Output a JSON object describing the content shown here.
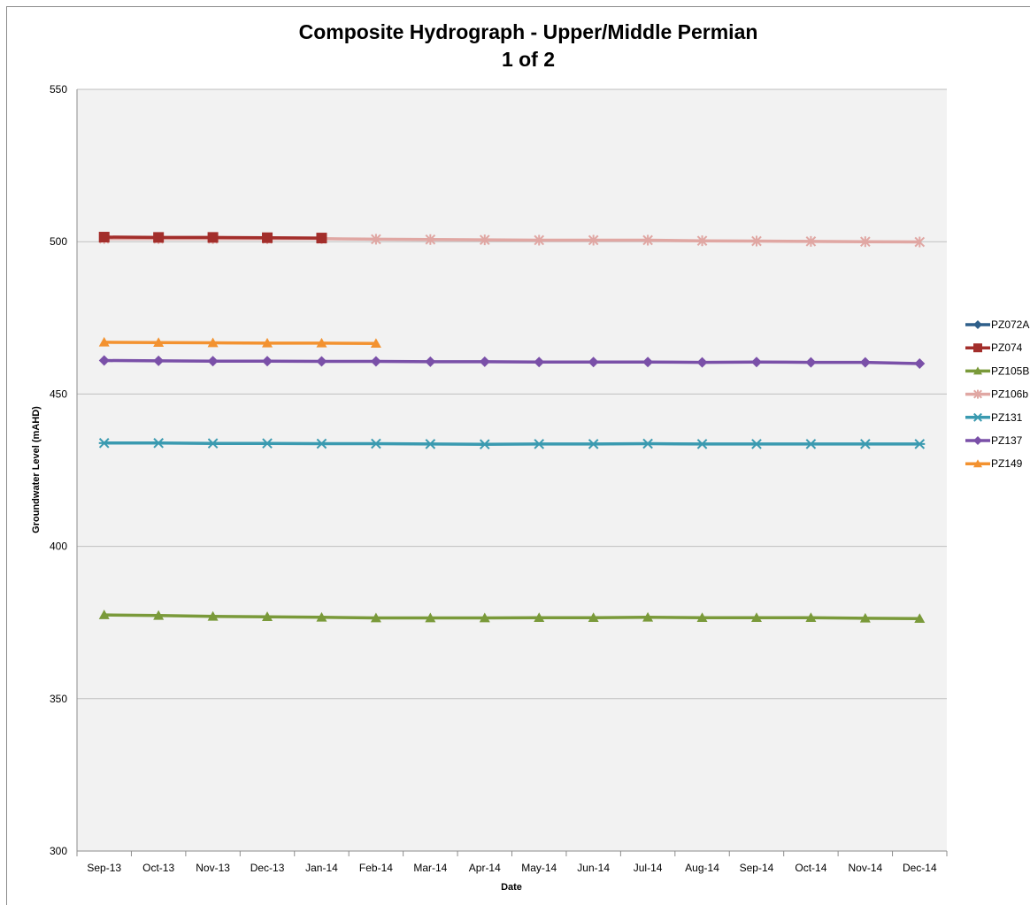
{
  "chart_data": {
    "type": "line",
    "title": "Composite Hydrograph - Upper/Middle Permian",
    "subtitle": "1 of 2",
    "xlabel": "Date",
    "ylabel": "Groundwater Level (mAHD)",
    "ylim": [
      300,
      550
    ],
    "yticks": [
      300,
      350,
      400,
      450,
      500,
      550
    ],
    "grid": "horizontal",
    "legend_position": "right",
    "categories": [
      "Sep-13",
      "Oct-13",
      "Nov-13",
      "Dec-13",
      "Jan-14",
      "Feb-14",
      "Mar-14",
      "Apr-14",
      "May-14",
      "Jun-14",
      "Jul-14",
      "Aug-14",
      "Sep-14",
      "Oct-14",
      "Nov-14",
      "Dec-14"
    ],
    "series": [
      {
        "name": "PZ072A",
        "color": "#2E5F8A",
        "marker": "diamond",
        "values": [
          null,
          null,
          null,
          null,
          null,
          null,
          null,
          null,
          null,
          null,
          null,
          null,
          null,
          null,
          null,
          null
        ]
      },
      {
        "name": "PZ074",
        "color": "#A32E2B",
        "marker": "square",
        "values": [
          501.5,
          501.4,
          501.4,
          501.3,
          501.2,
          null,
          null,
          null,
          null,
          null,
          null,
          null,
          null,
          null,
          null,
          null
        ]
      },
      {
        "name": "PZ105B",
        "color": "#7A9A3A",
        "marker": "triangle",
        "values": [
          377.5,
          377.3,
          377.0,
          376.9,
          376.7,
          376.5,
          376.5,
          376.5,
          376.6,
          376.6,
          376.7,
          376.6,
          376.6,
          376.6,
          376.4,
          376.3
        ]
      },
      {
        "name": "PZ106b",
        "color": "#E0A7A3",
        "marker": "star",
        "values": [
          501.0,
          501.0,
          501.0,
          501.0,
          501.0,
          500.8,
          500.7,
          500.6,
          500.5,
          500.5,
          500.5,
          500.3,
          500.2,
          500.1,
          500.0,
          499.9
        ]
      },
      {
        "name": "PZ131",
        "color": "#3A9AB0",
        "marker": "asterisk",
        "values": [
          433.9,
          433.9,
          433.8,
          433.8,
          433.7,
          433.7,
          433.6,
          433.5,
          433.6,
          433.6,
          433.7,
          433.6,
          433.6,
          433.6,
          433.6,
          433.6
        ]
      },
      {
        "name": "PZ137",
        "color": "#7A50A8",
        "marker": "diamond",
        "values": [
          461.0,
          460.9,
          460.8,
          460.8,
          460.7,
          460.7,
          460.6,
          460.6,
          460.5,
          460.5,
          460.5,
          460.4,
          460.5,
          460.4,
          460.4,
          460.0
        ]
      },
      {
        "name": "PZ149",
        "color": "#F39230",
        "marker": "triangle",
        "values": [
          467.0,
          466.9,
          466.8,
          466.7,
          466.7,
          466.6,
          null,
          null,
          null,
          null,
          null,
          null,
          null,
          null,
          null,
          null
        ]
      }
    ]
  }
}
